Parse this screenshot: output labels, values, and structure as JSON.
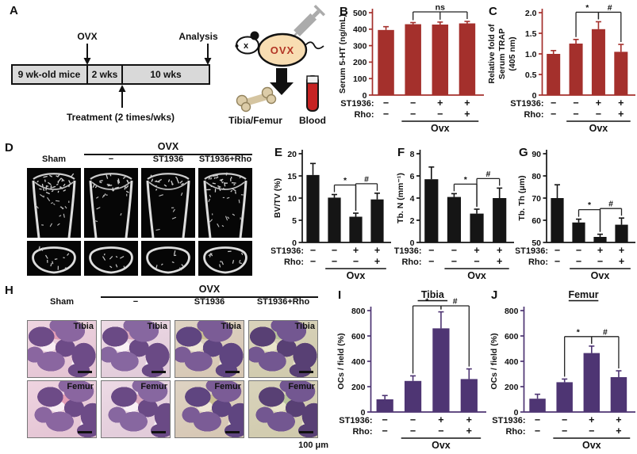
{
  "colors": {
    "dark_red": "#A4302C",
    "purple": "#4E3573",
    "black_bar": "#151515"
  },
  "panel_a": {
    "label": "A",
    "timeline": {
      "ovx_label": "OVX",
      "analysis_label": "Analysis",
      "boxes": [
        "9 wk-old mice",
        "2 wks",
        "10 wks"
      ],
      "treatment_label": "Treatment (2 times/wks)"
    },
    "mouse": {
      "body_text": "OVX",
      "eye_text": "x"
    },
    "outputs": {
      "tibia_femur_label": "Tibia/Femur",
      "blood_label": "Blood"
    }
  },
  "panel_d": {
    "label": "D",
    "group_header": "OVX",
    "columns": [
      "Sham",
      "−",
      "ST1936",
      "ST1936+Rho"
    ]
  },
  "panel_h": {
    "label": "H",
    "group_header": "OVX",
    "columns": [
      "Sham",
      "−",
      "ST1936",
      "ST1936+Rho"
    ],
    "row_labels": [
      "Tibia",
      "Femur"
    ],
    "scale_bar_label": "100 μm"
  },
  "chart_data": [
    {
      "id": "B",
      "panel_label": "B",
      "type": "bar",
      "title": "",
      "ylabel_lines": [
        "Serum 5-HT (ng/mL)"
      ],
      "ymin": 0,
      "ymax": 500,
      "yticks": [
        0,
        100,
        200,
        300,
        400,
        500
      ],
      "ytick_labels": [
        "0",
        "100",
        "200",
        "300",
        "400",
        "500"
      ],
      "values": [
        395,
        430,
        428,
        435
      ],
      "errors": [
        20,
        10,
        15,
        12
      ],
      "bar_color": "#A4302C",
      "axis_color": "#A4302C",
      "brackets": [
        {
          "label": "ns",
          "from": 1,
          "to": 3,
          "drops": [
            1,
            2,
            3
          ]
        }
      ],
      "x_rows": [
        {
          "label": "ST1936:",
          "values": [
            "−",
            "−",
            "+",
            "+"
          ]
        },
        {
          "label": "Rho:",
          "values": [
            "−",
            "−",
            "−",
            "+"
          ]
        }
      ],
      "group": {
        "label": "Ovx",
        "from": 1,
        "to": 3
      }
    },
    {
      "id": "C",
      "panel_label": "C",
      "type": "bar",
      "title": "",
      "ylabel_lines": [
        "Relative fold of",
        "Serum TRAP",
        "(405 nm)"
      ],
      "ymin": 0,
      "ymax": 2.0,
      "yticks": [
        0,
        0.5,
        1.0,
        1.5,
        2.0
      ],
      "ytick_labels": [
        "0",
        "0.5",
        "1.0",
        "1.5",
        "2.0"
      ],
      "values": [
        1.0,
        1.25,
        1.6,
        1.05
      ],
      "errors": [
        0.08,
        0.1,
        0.18,
        0.18
      ],
      "bar_color": "#A4302C",
      "axis_color": "#A4302C",
      "brackets": [
        {
          "label": "*",
          "from": 1,
          "to": 2
        },
        {
          "label": "#",
          "from": 2,
          "to": 3
        }
      ],
      "x_rows": [
        {
          "label": "ST1936:",
          "values": [
            "−",
            "−",
            "+",
            "+"
          ]
        },
        {
          "label": "Rho:",
          "values": [
            "−",
            "−",
            "−",
            "+"
          ]
        }
      ],
      "group": {
        "label": "Ovx",
        "from": 1,
        "to": 3
      }
    },
    {
      "id": "E",
      "panel_label": "E",
      "type": "bar",
      "title": "",
      "ylabel_lines": [
        "BV/TV (%)"
      ],
      "ymin": 0,
      "ymax": 20,
      "yticks": [
        0,
        5,
        10,
        15,
        20
      ],
      "ytick_labels": [
        "0",
        "5",
        "10",
        "15",
        "20"
      ],
      "values": [
        15.2,
        10.1,
        5.8,
        9.7
      ],
      "errors": [
        2.6,
        0.7,
        0.8,
        1.4
      ],
      "bar_color": "#151515",
      "axis_color": "#151515",
      "brackets": [
        {
          "label": "*",
          "from": 1,
          "to": 2
        },
        {
          "label": "#",
          "from": 2,
          "to": 3
        }
      ],
      "x_rows": [
        {
          "label": "ST1936:",
          "values": [
            "−",
            "−",
            "+",
            "+"
          ]
        },
        {
          "label": "Rho:",
          "values": [
            "−",
            "−",
            "−",
            "+"
          ]
        }
      ],
      "group": {
        "label": "Ovx",
        "from": 1,
        "to": 3
      }
    },
    {
      "id": "F",
      "panel_label": "F",
      "type": "bar",
      "title": "",
      "ylabel_lines": [
        "Tb. N (mm⁻¹)"
      ],
      "ymin": 0,
      "ymax": 8,
      "yticks": [
        0,
        2,
        4,
        6,
        8
      ],
      "ytick_labels": [
        "0",
        "2",
        "4",
        "6",
        "8"
      ],
      "values": [
        5.7,
        4.1,
        2.6,
        4.0
      ],
      "errors": [
        1.1,
        0.3,
        0.4,
        0.9
      ],
      "bar_color": "#151515",
      "axis_color": "#151515",
      "brackets": [
        {
          "label": "*",
          "from": 1,
          "to": 2
        },
        {
          "label": "#",
          "from": 2,
          "to": 3
        }
      ],
      "x_rows": [
        {
          "label": "ST1936:",
          "values": [
            "−",
            "−",
            "+",
            "+"
          ]
        },
        {
          "label": "Rho:",
          "values": [
            "−",
            "−",
            "−",
            "+"
          ]
        }
      ],
      "group": {
        "label": "Ovx",
        "from": 1,
        "to": 3
      }
    },
    {
      "id": "G",
      "panel_label": "G",
      "type": "bar",
      "title": "",
      "ylabel_lines": [
        "Tb. Th (μm)"
      ],
      "ymin": 50,
      "ymax": 90,
      "yticks": [
        50,
        60,
        70,
        80,
        90
      ],
      "ytick_labels": [
        "50",
        "60",
        "70",
        "80",
        "90"
      ],
      "values": [
        70,
        59,
        52.5,
        58
      ],
      "errors": [
        6,
        1.5,
        1.2,
        3
      ],
      "bar_color": "#151515",
      "axis_color": "#151515",
      "brackets": [
        {
          "label": "*",
          "from": 1,
          "to": 2
        },
        {
          "label": "#",
          "from": 2,
          "to": 3
        }
      ],
      "x_rows": [
        {
          "label": "ST1936:",
          "values": [
            "−",
            "−",
            "+",
            "+"
          ]
        },
        {
          "label": "Rho:",
          "values": [
            "−",
            "−",
            "−",
            "+"
          ]
        }
      ],
      "group": {
        "label": "Ovx",
        "from": 1,
        "to": 3
      }
    },
    {
      "id": "I",
      "panel_label": "I",
      "type": "bar",
      "title": "Tibia",
      "ylabel_lines": [
        "OCs / field (%)"
      ],
      "ymin": 0,
      "ymax": 800,
      "yticks": [
        0,
        200,
        400,
        600,
        800
      ],
      "ytick_labels": [
        "0",
        "200",
        "400",
        "600",
        "800"
      ],
      "values": [
        100,
        245,
        660,
        260
      ],
      "errors": [
        30,
        40,
        130,
        80
      ],
      "bar_color": "#4E3573",
      "axis_color": "#4E3573",
      "brackets": [
        {
          "label": "*",
          "from": 1,
          "to": 2
        },
        {
          "label": "#",
          "from": 2,
          "to": 3
        }
      ],
      "x_rows": [
        {
          "label": "ST1936:",
          "values": [
            "−",
            "−",
            "+",
            "+"
          ]
        },
        {
          "label": "Rho:",
          "values": [
            "−",
            "−",
            "−",
            "+"
          ]
        }
      ],
      "group": {
        "label": "Ovx",
        "from": 1,
        "to": 3
      }
    },
    {
      "id": "J",
      "panel_label": "J",
      "type": "bar",
      "title": "Femur",
      "ylabel_lines": [
        "OCs / field (%)"
      ],
      "ymin": 0,
      "ymax": 800,
      "yticks": [
        0,
        200,
        400,
        600,
        800
      ],
      "ytick_labels": [
        "0",
        "200",
        "400",
        "600",
        "800"
      ],
      "values": [
        105,
        235,
        465,
        275
      ],
      "errors": [
        35,
        25,
        55,
        50
      ],
      "bar_color": "#4E3573",
      "axis_color": "#4E3573",
      "brackets": [
        {
          "label": "*",
          "from": 1,
          "to": 2
        },
        {
          "label": "#",
          "from": 2,
          "to": 3
        }
      ],
      "x_rows": [
        {
          "label": "ST1936:",
          "values": [
            "−",
            "−",
            "+",
            "+"
          ]
        },
        {
          "label": "Rho:",
          "values": [
            "−",
            "−",
            "−",
            "+"
          ]
        }
      ],
      "group": {
        "label": "Ovx",
        "from": 1,
        "to": 3
      }
    }
  ]
}
